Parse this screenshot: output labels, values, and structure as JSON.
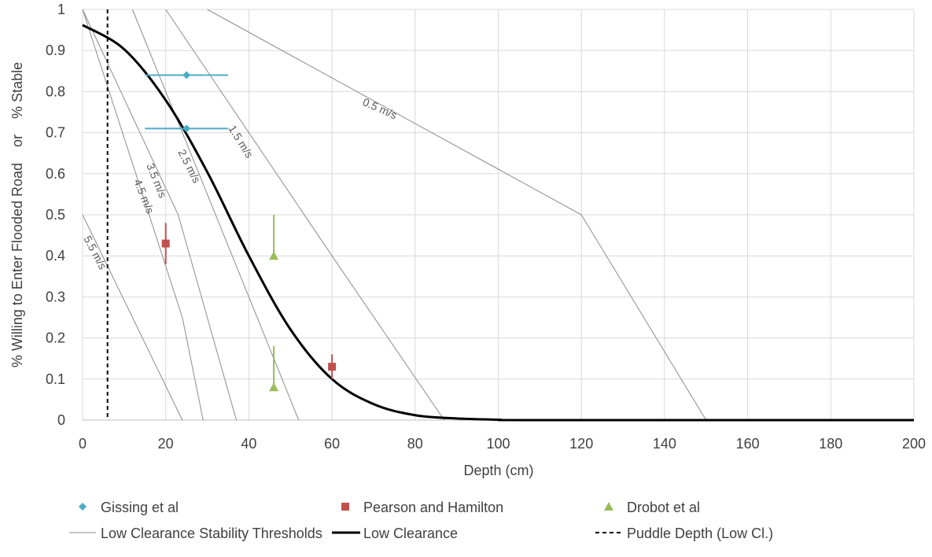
{
  "chart_data": {
    "type": "line",
    "xlabel": "Depth (cm)",
    "ylabel": "% Willing to Enter Flooded Road    or    % Stable",
    "xlim": [
      0,
      200
    ],
    "ylim": [
      0,
      1
    ],
    "x_ticks": [
      "0",
      "20",
      "40",
      "60",
      "80",
      "100",
      "120",
      "140",
      "160",
      "180",
      "200"
    ],
    "y_ticks": [
      "0",
      "0.1",
      "0.2",
      "0.3",
      "0.4",
      "0.5",
      "0.6",
      "0.7",
      "0.8",
      "0.9",
      "1"
    ],
    "grid": true,
    "legend_position": "bottom",
    "colors": {
      "gissing": "#4BACC6",
      "pearson": "#C0504D",
      "drobot": "#9BBB59",
      "threshold": "#8C8C8C",
      "curve": "#000000",
      "puddle": "#000000",
      "grid": "#D9D9D9"
    },
    "thresholds": [
      {
        "name": "0.5 m/s",
        "points": [
          [
            30,
            1
          ],
          [
            120,
            0.5
          ],
          [
            150,
            0
          ]
        ]
      },
      {
        "name": "1.5 m/s",
        "points": [
          [
            20,
            1
          ],
          [
            60,
            0.4
          ],
          [
            87,
            0
          ]
        ]
      },
      {
        "name": "2.5 m/s",
        "points": [
          [
            12,
            1
          ],
          [
            52,
            0
          ]
        ]
      },
      {
        "name": "3.5 m/s",
        "points": [
          [
            0,
            1
          ],
          [
            23,
            0.5
          ],
          [
            37,
            0
          ]
        ]
      },
      {
        "name": "4.5 m/s",
        "points": [
          [
            0,
            1
          ],
          [
            24,
            0.25
          ],
          [
            29,
            0
          ]
        ]
      },
      {
        "name": "5.5 m/s",
        "points": [
          [
            0,
            0.5
          ],
          [
            24,
            0
          ]
        ]
      }
    ],
    "series": [
      {
        "name": "Gissing et al",
        "marker": "diamond",
        "points": [
          {
            "x": 25,
            "y": 0.84,
            "x_err": [
              15,
              35
            ]
          },
          {
            "x": 25,
            "y": 0.71,
            "x_err": [
              15,
              35
            ]
          }
        ]
      },
      {
        "name": "Pearson and Hamilton",
        "marker": "square",
        "points": [
          {
            "x": 20,
            "y": 0.43,
            "y_err": [
              0.38,
              0.48
            ]
          },
          {
            "x": 60,
            "y": 0.13,
            "y_err": [
              0.1,
              0.16
            ]
          }
        ]
      },
      {
        "name": "Drobot et al",
        "marker": "triangle",
        "points": [
          {
            "x": 46,
            "y": 0.4,
            "y_err": [
              0.4,
              0.5
            ]
          },
          {
            "x": 46,
            "y": 0.08,
            "y_err": [
              0.08,
              0.18
            ]
          }
        ]
      },
      {
        "name": "Low Clearance",
        "curve": "logistic",
        "points": [
          [
            0,
            0.962
          ],
          [
            10,
            0.903
          ],
          [
            20,
            0.779
          ],
          [
            30,
            0.604
          ],
          [
            40,
            0.4
          ],
          [
            50,
            0.221
          ],
          [
            60,
            0.1
          ],
          [
            70,
            0.039
          ],
          [
            80,
            0.012
          ],
          [
            90,
            0.004
          ],
          [
            100,
            0.001
          ],
          [
            110,
            0.0
          ],
          [
            200,
            0.0
          ]
        ]
      }
    ],
    "puddle_depth": {
      "name": "Puddle Depth (Low Cl.)",
      "x": 6
    },
    "legend": [
      {
        "label": "Gissing et al",
        "symbol": "diamond",
        "color": "#4BACC6"
      },
      {
        "label": "Pearson and Hamilton",
        "symbol": "square",
        "color": "#C0504D"
      },
      {
        "label": "Drobot et al",
        "symbol": "triangle",
        "color": "#9BBB59"
      },
      {
        "label": "Low Clearance Stability Thresholds",
        "symbol": "thin-line",
        "color": "#8C8C8C"
      },
      {
        "label": "Low Clearance",
        "symbol": "thick-line",
        "color": "#000000"
      },
      {
        "label": "Puddle Depth (Low Cl.)",
        "symbol": "dashed-line",
        "color": "#000000"
      }
    ]
  }
}
